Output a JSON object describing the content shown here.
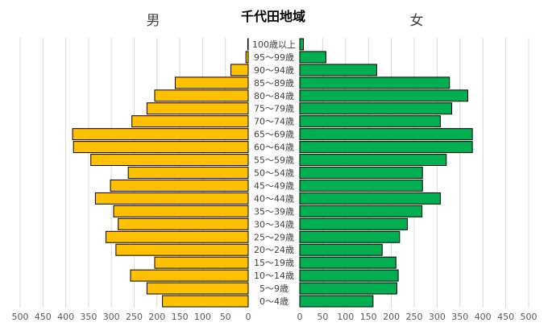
{
  "chart_data": {
    "type": "bar",
    "title": "千代田地域",
    "left_label": "男",
    "right_label": "女",
    "categories": [
      "100歳以上",
      "95〜99歳",
      "90〜94歳",
      "85〜89歳",
      "80〜84歳",
      "75〜79歳",
      "70〜74歳",
      "65〜69歳",
      "60〜64歳",
      "55〜59歳",
      "50〜54歳",
      "45〜49歳",
      "40〜44歳",
      "35〜39歳",
      "30〜34歳",
      "25〜29歳",
      "20〜24歳",
      "15〜19歳",
      "10〜14歳",
      "5〜9歳",
      "0〜4歳"
    ],
    "series": [
      {
        "name": "男",
        "color": "#FFC000",
        "values": [
          1,
          5,
          38,
          160,
          205,
          222,
          255,
          385,
          383,
          345,
          263,
          302,
          335,
          295,
          285,
          312,
          290,
          205,
          258,
          222,
          188
        ]
      },
      {
        "name": "女",
        "color": "#00B050",
        "values": [
          8,
          57,
          168,
          327,
          367,
          332,
          307,
          377,
          377,
          320,
          268,
          268,
          307,
          267,
          235,
          218,
          180,
          210,
          215,
          212,
          160
        ]
      }
    ],
    "xlim": [
      0,
      500
    ],
    "ticks": [
      0,
      50,
      100,
      150,
      200,
      250,
      300,
      350,
      400,
      450,
      500
    ],
    "grid": true
  }
}
